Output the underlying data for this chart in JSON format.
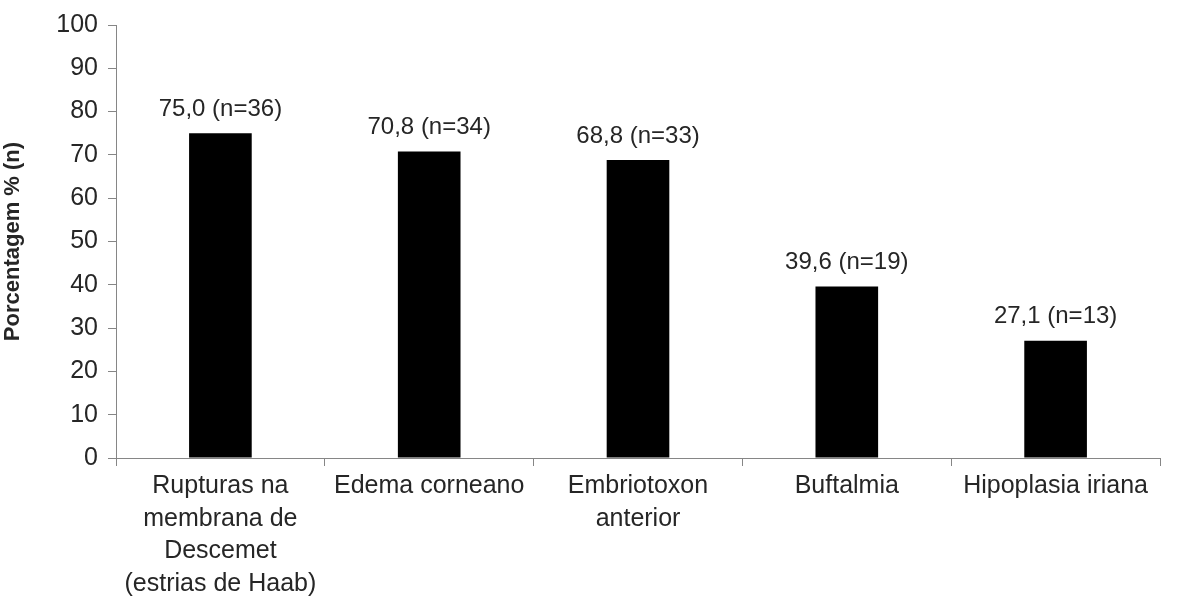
{
  "chart_data": {
    "type": "bar",
    "categories": [
      "Rupturas na membrana de Descemet (estrias de Haab)",
      "Edema corneano",
      "Embriotoxon anterior",
      "Buftalmia",
      "Hipoplasia iriana"
    ],
    "values": [
      75.0,
      70.8,
      68.8,
      39.6,
      27.1
    ],
    "value_labels": [
      "75,0 (n=36)",
      "70,8 (n=34)",
      "68,8 (n=33)",
      "39,6 (n=19)",
      "27,1 (n=13)"
    ],
    "color": "#000000",
    "ylabel": "Porcentagem % (n)",
    "ylim": [
      0,
      100
    ],
    "yticks": [
      0,
      10,
      20,
      30,
      40,
      50,
      60,
      70,
      80,
      90,
      100
    ],
    "legend": false
  }
}
